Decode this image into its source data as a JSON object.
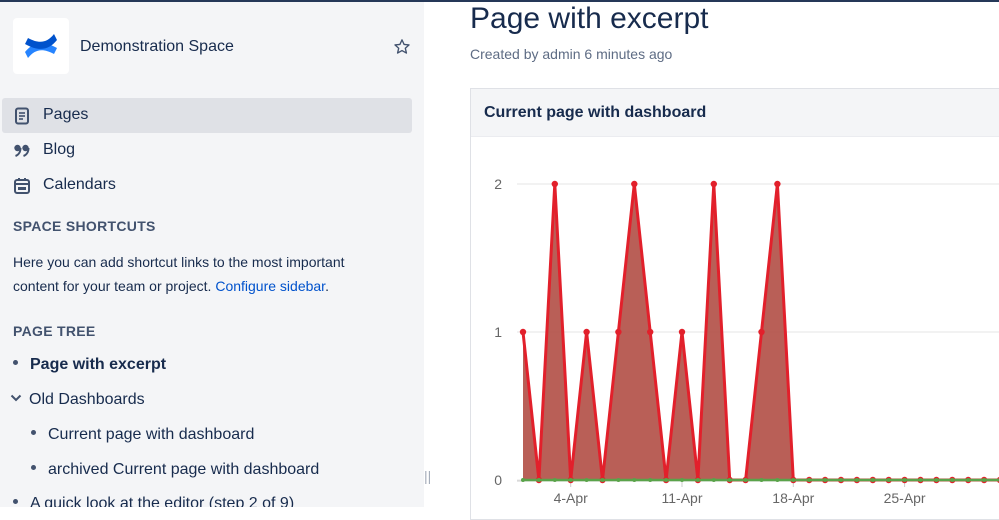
{
  "sidebar": {
    "space_name": "Demonstration Space",
    "nav": [
      {
        "label": "Pages",
        "icon": "page-icon",
        "active": true
      },
      {
        "label": "Blog",
        "icon": "quote-icon",
        "active": false
      },
      {
        "label": "Calendars",
        "icon": "calendar-icon",
        "active": false
      }
    ],
    "shortcuts_heading": "SPACE SHORTCUTS",
    "shortcuts_text": "Here you can add shortcut links to the most important content for your team or project.",
    "shortcuts_link": "Configure sidebar",
    "shortcuts_period": ".",
    "tree_heading": "PAGE TREE",
    "tree": [
      {
        "label": "Page with excerpt"
      },
      {
        "label": "Old Dashboards"
      },
      {
        "label": "Current page with dashboard"
      },
      {
        "label": "archived Current page with dashboard"
      },
      {
        "label": "A quick look at the editor (step 2 of 9)"
      }
    ],
    "resize_glyph": "||"
  },
  "main": {
    "title": "Page with excerpt",
    "byline": "Created by admin 6 minutes ago",
    "panel_title": "Current page with dashboard"
  },
  "colors": {
    "accent": "#0052cc",
    "series_red": "#e2202b",
    "series_fill": "#b5564e",
    "series_green": "#5aa34a"
  },
  "chart_data": {
    "type": "area",
    "title": "",
    "xlabel": "",
    "ylabel": "",
    "ylim": [
      0,
      2
    ],
    "yticks": [
      "0",
      "1",
      "2"
    ],
    "xtick_labels": [
      "4-Apr",
      "11-Apr",
      "18-Apr",
      "25-Apr"
    ],
    "xtick_index": [
      3,
      10,
      17,
      24
    ],
    "series": [
      {
        "color": "#e2202b",
        "values": [
          1,
          0,
          2,
          0,
          1,
          0,
          1,
          2,
          1,
          0,
          1,
          0,
          2,
          0,
          0,
          1,
          2,
          0,
          0,
          0,
          0,
          0,
          0,
          0,
          0,
          0,
          0,
          0,
          0,
          0,
          0
        ]
      },
      {
        "color": "#5aa34a",
        "values": [
          0,
          0,
          0,
          0,
          0,
          0,
          0,
          0,
          0,
          0,
          0,
          0,
          0,
          0,
          0,
          0,
          0,
          0,
          0,
          0,
          0,
          0,
          0,
          0,
          0,
          0,
          0,
          0,
          0,
          0,
          0
        ]
      }
    ]
  }
}
